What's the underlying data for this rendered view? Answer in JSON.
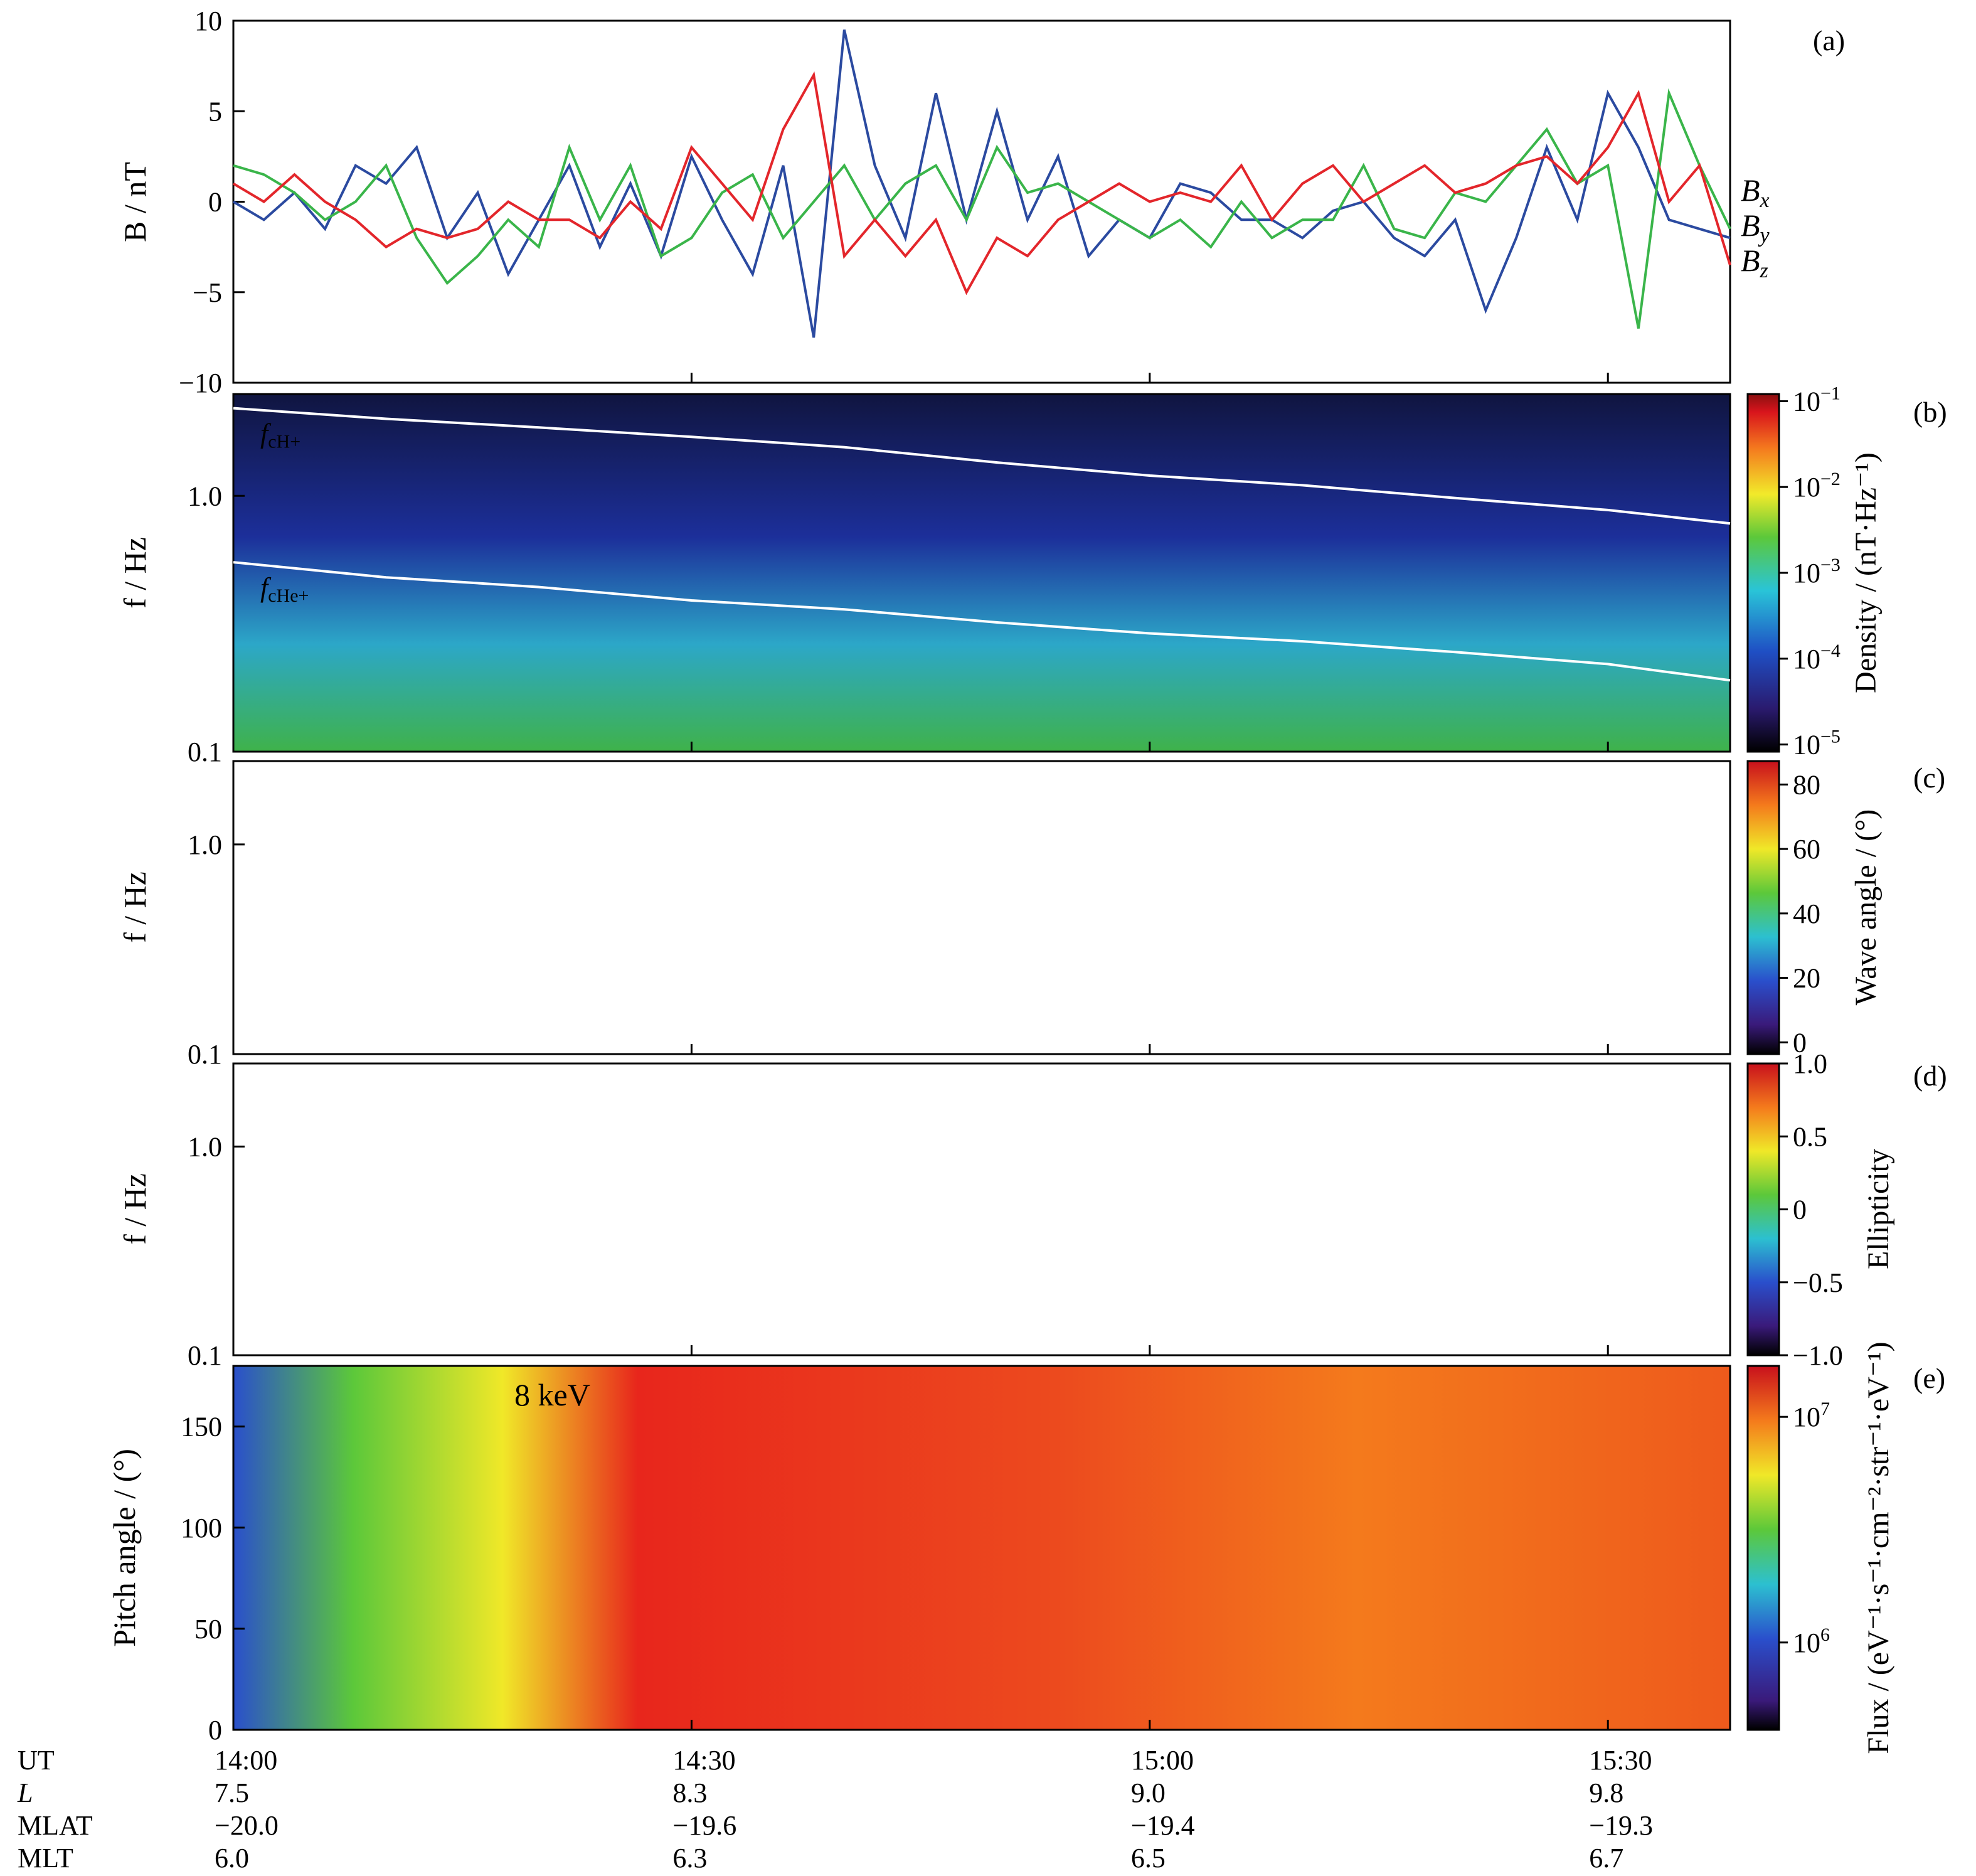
{
  "chart_data": [
    {
      "panel": "(a)",
      "type": "line",
      "ylabel": "B / nT",
      "ylim": [
        -10,
        10
      ],
      "yticks": [
        "10",
        "5",
        "0",
        "−5",
        "−10"
      ],
      "xlim_minutes": [
        0,
        98
      ],
      "series": [
        {
          "name": "Bx",
          "color": "#2b4aa0",
          "x": [
            0,
            2,
            4,
            6,
            8,
            10,
            12,
            14,
            16,
            18,
            20,
            22,
            24,
            26,
            28,
            30,
            32,
            34,
            36,
            38,
            40,
            42,
            44,
            46,
            48,
            50,
            52,
            54,
            56,
            58,
            60,
            62,
            64,
            66,
            68,
            70,
            72,
            74,
            76,
            78,
            80,
            82,
            84,
            86,
            88,
            90,
            92,
            94,
            96,
            98
          ],
          "values": [
            0,
            -1,
            0.5,
            -1.5,
            2,
            1,
            3,
            -2,
            0.5,
            -4,
            -1,
            2,
            -2.5,
            1,
            -3,
            2.5,
            -1,
            -4,
            2,
            -7.5,
            9.5,
            2,
            -2,
            6,
            -1,
            5,
            -1,
            2.5,
            -3,
            -1,
            -2,
            1,
            0.5,
            -1,
            -1,
            -2,
            -0.5,
            0,
            -2,
            -3,
            -1,
            -6,
            -2,
            3,
            -1,
            6,
            3,
            -1,
            -1.5,
            -2
          ]
        },
        {
          "name": "By",
          "color": "#3ab54a",
          "x": [
            0,
            2,
            4,
            6,
            8,
            10,
            12,
            14,
            16,
            18,
            20,
            22,
            24,
            26,
            28,
            30,
            32,
            34,
            36,
            38,
            40,
            42,
            44,
            46,
            48,
            50,
            52,
            54,
            56,
            58,
            60,
            62,
            64,
            66,
            68,
            70,
            72,
            74,
            76,
            78,
            80,
            82,
            84,
            86,
            88,
            90,
            92,
            94,
            96,
            98
          ],
          "values": [
            2,
            1.5,
            0.5,
            -1,
            0,
            2,
            -2,
            -4.5,
            -3,
            -1,
            -2.5,
            3,
            -1,
            2,
            -3,
            -2,
            0.5,
            1.5,
            -2,
            0,
            2,
            -1,
            1,
            2,
            -1,
            3,
            0.5,
            1,
            0,
            -1,
            -2,
            -1,
            -2.5,
            0,
            -2,
            -1,
            -1,
            2,
            -1.5,
            -2,
            0.5,
            0,
            2,
            4,
            1,
            2,
            -7,
            6,
            2,
            -1.5
          ]
        },
        {
          "name": "Bz",
          "color": "#e3262b",
          "x": [
            0,
            2,
            4,
            6,
            8,
            10,
            12,
            14,
            16,
            18,
            20,
            22,
            24,
            26,
            28,
            30,
            32,
            34,
            36,
            38,
            40,
            42,
            44,
            46,
            48,
            50,
            52,
            54,
            56,
            58,
            60,
            62,
            64,
            66,
            68,
            70,
            72,
            74,
            76,
            78,
            80,
            82,
            84,
            86,
            88,
            90,
            92,
            94,
            96,
            98
          ],
          "values": [
            1,
            0,
            1.5,
            0,
            -1,
            -2.5,
            -1.5,
            -2,
            -1.5,
            0,
            -1,
            -1,
            -2,
            0,
            -1.5,
            3,
            1,
            -1,
            4,
            7,
            -3,
            -1,
            -3,
            -1,
            -5,
            -2,
            -3,
            -1,
            0,
            1,
            0,
            0.5,
            0,
            2,
            -1,
            1,
            2,
            0,
            1,
            2,
            0.5,
            1,
            2,
            2.5,
            1,
            3,
            6,
            0,
            2,
            -3.5
          ]
        }
      ]
    },
    {
      "panel": "(b)",
      "type": "heatmap",
      "ylabel": "f / Hz",
      "yscale": "log",
      "ylim": [
        0.1,
        2.5
      ],
      "yticks": [
        "1.0",
        "0.1"
      ],
      "lines": [
        {
          "name": "fcH+",
          "color": "#ffffff",
          "x": [
            0,
            10,
            20,
            30,
            40,
            50,
            60,
            70,
            80,
            90,
            98
          ],
          "values": [
            2.2,
            2.0,
            1.85,
            1.7,
            1.55,
            1.35,
            1.2,
            1.1,
            0.98,
            0.88,
            0.78
          ]
        },
        {
          "name": "fcHe+",
          "color": "#ffffff",
          "x": [
            0,
            10,
            20,
            30,
            40,
            50,
            60,
            70,
            80,
            90,
            98
          ],
          "values": [
            0.55,
            0.48,
            0.44,
            0.39,
            0.36,
            0.32,
            0.29,
            0.27,
            0.245,
            0.22,
            0.19
          ]
        }
      ],
      "colorbar": {
        "title": "Density / (nT·Hz⁻¹)",
        "scale": "log",
        "range": [
          1e-05,
          0.1
        ],
        "ticks": [
          "10",
          "10",
          "10",
          "10",
          "10"
        ],
        "exponents": [
          "−1",
          "−2",
          "−3",
          "−4",
          "−5"
        ]
      }
    },
    {
      "panel": "(c)",
      "type": "heatmap",
      "ylabel": "f / Hz",
      "yscale": "log",
      "ylim": [
        0.1,
        2.5
      ],
      "yticks": [
        "1.0",
        "0.1"
      ],
      "colorbar": {
        "title": "Wave angle / (°)",
        "range": [
          0,
          90
        ],
        "ticks": [
          "80",
          "60",
          "40",
          "20",
          "0"
        ]
      }
    },
    {
      "panel": "(d)",
      "type": "heatmap",
      "ylabel": "f / Hz",
      "yscale": "log",
      "ylim": [
        0.1,
        2.5
      ],
      "yticks": [
        "1.0",
        "0.1"
      ],
      "colorbar": {
        "title": "Ellipticity",
        "range": [
          -1,
          1
        ],
        "ticks": [
          "1.0",
          "0.5",
          "0",
          "−0.5",
          "−1.0"
        ]
      }
    },
    {
      "panel": "(e)",
      "type": "heatmap",
      "ylabel": "Pitch angle / (°)",
      "ylim": [
        0,
        180
      ],
      "yticks": [
        "150",
        "100",
        "50",
        "0"
      ],
      "annotation": "8 keV",
      "colorbar": {
        "title": "Flux / (eV⁻¹·s⁻¹·cm⁻²·str⁻¹·eV⁻¹)",
        "scale": "log",
        "ticks": [
          "10",
          "10"
        ],
        "exponents": [
          "7",
          "6"
        ]
      }
    }
  ],
  "footer": {
    "rows": [
      {
        "name": "UT",
        "values": [
          "14:00",
          "14:30",
          "15:00",
          "15:30"
        ]
      },
      {
        "name": "L",
        "values": [
          "7.5",
          "8.3",
          "9.0",
          "9.8"
        ]
      },
      {
        "name": "MLAT",
        "values": [
          "−20.0",
          "−19.6",
          "−19.4",
          "−19.3"
        ]
      },
      {
        "name": "MLT",
        "values": [
          "6.0",
          "6.3",
          "6.5",
          "6.7"
        ]
      }
    ],
    "tick_minutes": [
      0,
      30,
      60,
      90
    ]
  }
}
